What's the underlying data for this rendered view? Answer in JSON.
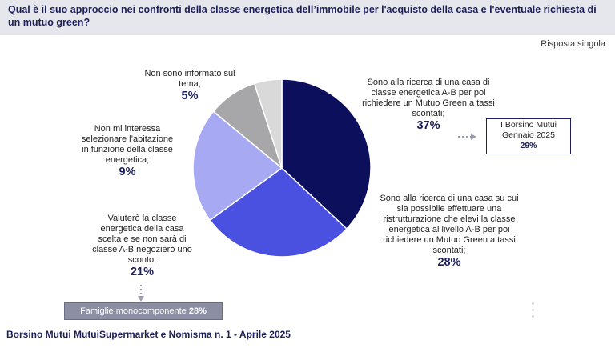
{
  "header": {
    "title": "Qual è il suo approccio nei confronti della classe energetica dell’immobile per l'acquisto della casa e l'eventuale richiesta di un mutuo green?"
  },
  "response_type": "Risposta singola",
  "chart_data": {
    "type": "pie",
    "start_angle_deg": 0,
    "slices": [
      {
        "label": "Sono alla ricerca di una casa di classe energetica A-B per poi richiedere un Mutuo Green a tassi scontati;",
        "value": 37,
        "display": "37%",
        "color": "#0c0f5c"
      },
      {
        "label": "Sono alla ricerca di una casa su cui sia possibile effettuare una ristrutturazione che elevi la classe energetica al livello A-B per poi richiedere un Mutuo Green a tassi scontati;",
        "value": 28,
        "display": "28%",
        "color": "#4a51e0"
      },
      {
        "label": "Valuterò la classe energetica della casa scelta e se non sarà di classe A-B negozierò uno sconto;",
        "value": 21,
        "display": "21%",
        "color": "#a7aaf3"
      },
      {
        "label": "Non mi interessa selezionare l’abitazione in funzione della classe energetica;",
        "value": 9,
        "display": "9%",
        "color": "#a7a7a9"
      },
      {
        "label": "Non sono informato sul tema;",
        "value": 5,
        "display": "5%",
        "color": "#d9d9d9"
      }
    ]
  },
  "callout": {
    "line1": "I Borsino Mutui",
    "line2": "Gennaio 2025",
    "value": "29%"
  },
  "famiglie": {
    "text": "Famiglie monocomponente",
    "value": "28%"
  },
  "footer": {
    "text": "Borsino Mutui MutuiSupermarket e Nomisma n. 1 - Aprile 2025"
  }
}
